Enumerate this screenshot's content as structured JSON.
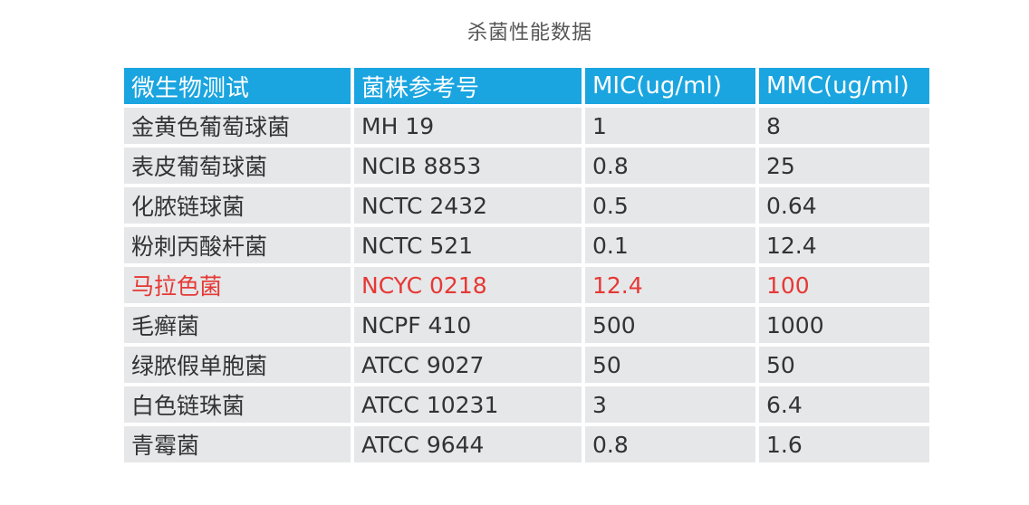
{
  "title": "杀菌性能数据",
  "colors": {
    "header_bg": "#1aa5e0",
    "row_bg": "#e6e7e9",
    "highlight_text": "#e53935"
  },
  "table": {
    "headers": [
      "微生物测试",
      "菌株参考号",
      "MIC(ug/ml)",
      "MMC(ug/ml)"
    ],
    "rows": [
      {
        "organism": "金黄色葡萄球菌",
        "strain": "MH 19",
        "mic": "1",
        "mmc": "8",
        "highlight": false
      },
      {
        "organism": "表皮葡萄球菌",
        "strain": "NCIB 8853",
        "mic": "0.8",
        "mmc": "25",
        "highlight": false
      },
      {
        "organism": "化脓链球菌",
        "strain": "NCTC 2432",
        "mic": "0.5",
        "mmc": "0.64",
        "highlight": false
      },
      {
        "organism": "粉刺丙酸杆菌",
        "strain": "NCTC 521",
        "mic": "0.1",
        "mmc": "12.4",
        "highlight": false
      },
      {
        "organism": "马拉色菌",
        "strain": "NCYC 0218",
        "mic": "12.4",
        "mmc": "100",
        "highlight": true
      },
      {
        "organism": "毛癣菌",
        "strain": "NCPF 410",
        "mic": "500",
        "mmc": "1000",
        "highlight": false
      },
      {
        "organism": "绿脓假单胞菌",
        "strain": "ATCC 9027",
        "mic": "50",
        "mmc": "50",
        "highlight": false
      },
      {
        "organism": "白色链珠菌",
        "strain": "ATCC 10231",
        "mic": "3",
        "mmc": "6.4",
        "highlight": false
      },
      {
        "organism": "青霉菌",
        "strain": "ATCC 9644",
        "mic": "0.8",
        "mmc": "1.6",
        "highlight": false
      }
    ]
  }
}
